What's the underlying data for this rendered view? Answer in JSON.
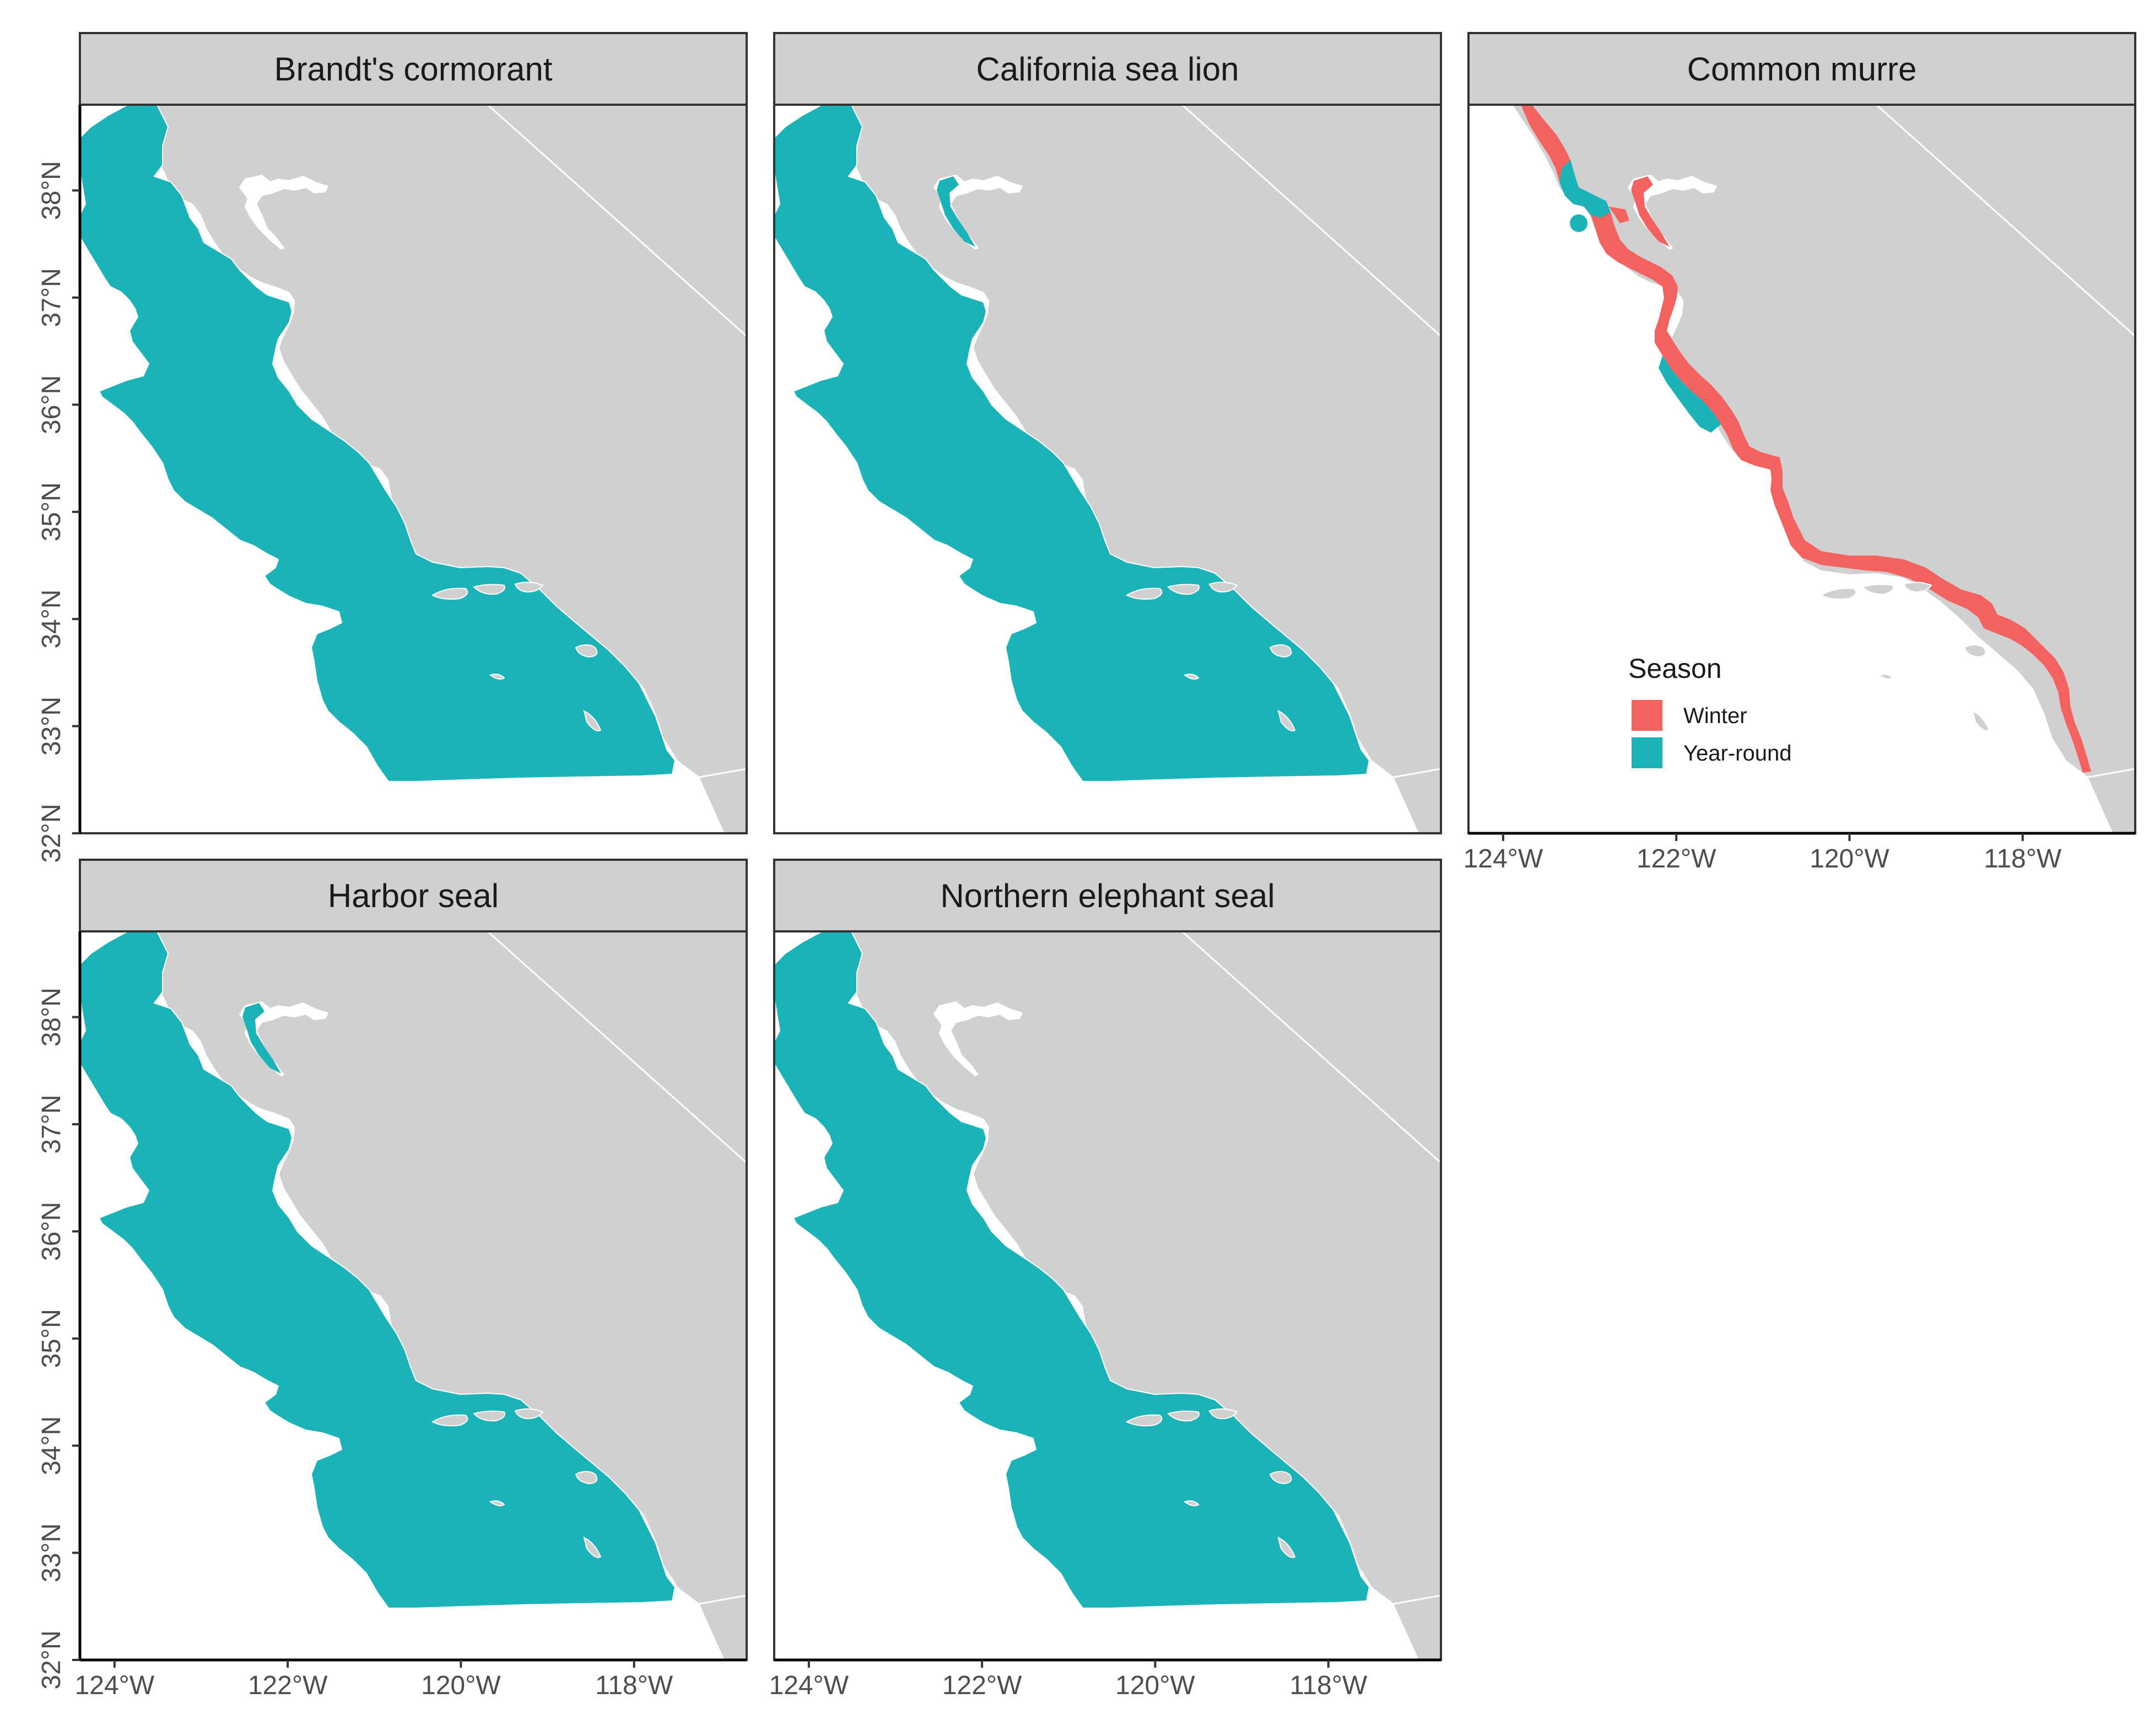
{
  "colors": {
    "land": "#d0d0d0",
    "ocean": "#ffffff",
    "year_round": "#1ab3b8",
    "winter": "#f4625f",
    "strip": "#d0d0d0",
    "border": "#333333"
  },
  "chart_data": {
    "type": "map",
    "layout": "facet-wrap 3 columns",
    "xlim": [
      -124.4,
      -116.7
    ],
    "ylim": [
      32.0,
      38.8
    ],
    "x_ticks": [
      "124°W",
      "122°W",
      "120°W",
      "118°W"
    ],
    "y_ticks": [
      "32°N",
      "33°N",
      "34°N",
      "35°N",
      "36°N",
      "37°N",
      "38°N"
    ],
    "x_tick_values": [
      -124,
      -122,
      -120,
      -118
    ],
    "y_tick_values": [
      32,
      33,
      34,
      35,
      36,
      37,
      38
    ],
    "legend": {
      "title": "Season",
      "placement": "inside bottom-left of Common murre panel",
      "items": [
        {
          "label": "Winter",
          "color": "#f4625f"
        },
        {
          "label": "Year-round",
          "color": "#1ab3b8"
        }
      ]
    },
    "panels": [
      {
        "title": "Brandt's cormorant",
        "range": "offshore",
        "season": "Year-round"
      },
      {
        "title": "California sea lion",
        "range": "offshore",
        "season": "Year-round"
      },
      {
        "title": "Common murre",
        "range": "coastal",
        "season": "Winter and Year-round"
      },
      {
        "title": "Harbor seal",
        "range": "offshore",
        "season": "Year-round"
      },
      {
        "title": "Northern elephant seal",
        "range": "offshore",
        "season": "Year-round"
      }
    ]
  }
}
